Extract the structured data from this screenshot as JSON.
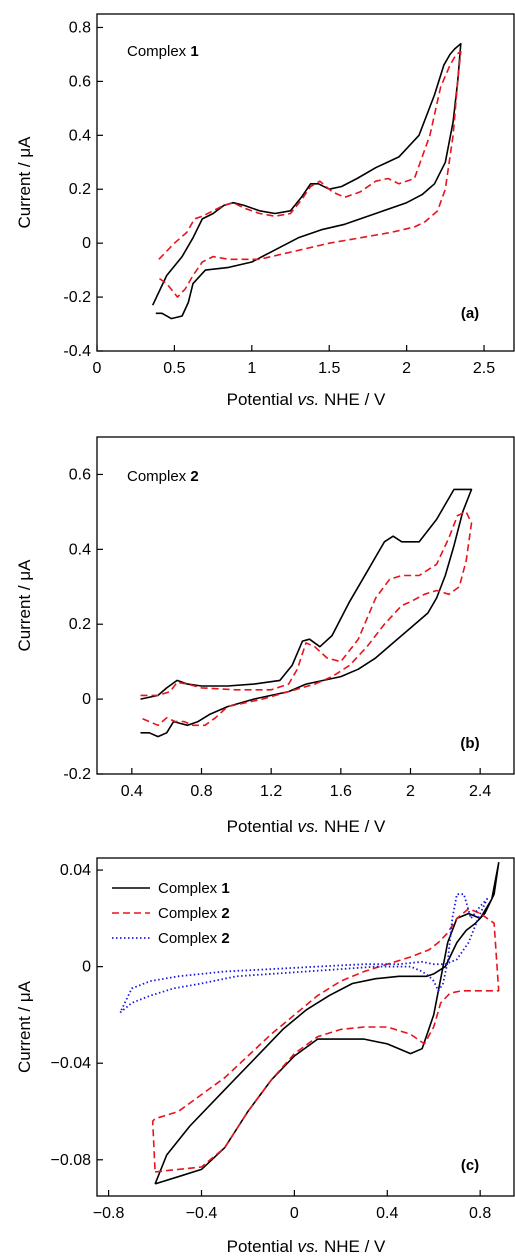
{
  "chart_data": [
    {
      "type": "line",
      "panel_label": "(a)",
      "annotation": {
        "text": "Complex ",
        "bold": "1"
      },
      "xlabel": {
        "pre": "Potential ",
        "ital": "vs.",
        "post": " NHE / V"
      },
      "ylabel": "Current / μA",
      "xlim": [
        0,
        2.7
      ],
      "ylim": [
        -0.4,
        0.85
      ],
      "xticks": [
        0,
        0.5,
        1,
        1.5,
        2,
        2.5
      ],
      "xtick_labels": [
        "0",
        "0.5",
        "1",
        "1.5",
        "2",
        "2.5"
      ],
      "yticks": [
        -0.4,
        -0.2,
        0,
        0.2,
        0.4,
        0.6,
        0.8
      ],
      "ytick_labels": [
        "-0.4",
        "-0.2",
        "0",
        "0.2",
        "0.4",
        "0.6",
        "0.8"
      ],
      "series": [
        {
          "style": "solid",
          "color": "#000000",
          "x": [
            0.36,
            0.45,
            0.55,
            0.62,
            0.68,
            0.75,
            0.82,
            0.88,
            0.95,
            1.05,
            1.15,
            1.25,
            1.32,
            1.38,
            1.43,
            1.5,
            1.58,
            1.68,
            1.8,
            1.95,
            2.08,
            2.18,
            2.24,
            2.28,
            2.31,
            2.35,
            2.33,
            2.3,
            2.25,
            2.18,
            2.1,
            2.0,
            1.8,
            1.6,
            1.45,
            1.3,
            1.1,
            1.0,
            0.85,
            0.7,
            0.62,
            0.59,
            0.55,
            0.48,
            0.42,
            0.38
          ],
          "y": [
            -0.23,
            -0.12,
            -0.05,
            0.02,
            0.09,
            0.11,
            0.14,
            0.15,
            0.14,
            0.12,
            0.11,
            0.12,
            0.17,
            0.22,
            0.22,
            0.2,
            0.21,
            0.24,
            0.28,
            0.32,
            0.4,
            0.55,
            0.66,
            0.7,
            0.72,
            0.74,
            0.6,
            0.45,
            0.3,
            0.22,
            0.18,
            0.15,
            0.11,
            0.07,
            0.05,
            0.02,
            -0.04,
            -0.07,
            -0.09,
            -0.1,
            -0.15,
            -0.22,
            -0.27,
            -0.28,
            -0.26,
            -0.26
          ]
        },
        {
          "style": "dashed",
          "color": "#e8141c",
          "x": [
            0.4,
            0.5,
            0.58,
            0.63,
            0.68,
            0.75,
            0.82,
            0.88,
            0.95,
            1.05,
            1.15,
            1.25,
            1.32,
            1.38,
            1.44,
            1.52,
            1.6,
            1.7,
            1.8,
            1.88,
            1.95,
            2.05,
            2.15,
            2.22,
            2.28,
            2.32,
            2.35,
            2.33,
            2.3,
            2.25,
            2.2,
            2.12,
            2.05,
            1.9,
            1.7,
            1.5,
            1.35,
            1.2,
            1.05,
            0.95,
            0.85,
            0.75,
            0.68,
            0.62,
            0.57,
            0.52,
            0.45,
            0.4
          ],
          "y": [
            -0.06,
            0.0,
            0.04,
            0.09,
            0.1,
            0.12,
            0.14,
            0.15,
            0.13,
            0.11,
            0.1,
            0.11,
            0.16,
            0.21,
            0.23,
            0.19,
            0.17,
            0.19,
            0.23,
            0.24,
            0.22,
            0.24,
            0.4,
            0.58,
            0.66,
            0.7,
            0.71,
            0.6,
            0.4,
            0.2,
            0.12,
            0.08,
            0.06,
            0.04,
            0.02,
            0.0,
            -0.02,
            -0.04,
            -0.06,
            -0.06,
            -0.06,
            -0.05,
            -0.07,
            -0.12,
            -0.17,
            -0.2,
            -0.15,
            -0.13
          ]
        }
      ]
    },
    {
      "type": "line",
      "panel_label": "(b)",
      "annotation": {
        "text": "Complex ",
        "bold": "2"
      },
      "xlabel": {
        "pre": "Potential ",
        "ital": "vs.",
        "post": " NHE / V"
      },
      "ylabel": "Current / μA",
      "xlim": [
        0.2,
        2.6
      ],
      "ylim": [
        -0.2,
        0.7
      ],
      "xticks": [
        0.4,
        0.8,
        1.2,
        1.6,
        2.0,
        2.4
      ],
      "xtick_labels": [
        "0.4",
        "0.8",
        "1.2",
        "1.6",
        "2",
        "2.4"
      ],
      "yticks": [
        -0.2,
        0,
        0.2,
        0.4,
        0.6
      ],
      "ytick_labels": [
        "-0.2",
        "0",
        "0.2",
        "0.4",
        "0.6"
      ],
      "series": [
        {
          "style": "solid",
          "color": "#000000",
          "x": [
            0.45,
            0.55,
            0.6,
            0.66,
            0.72,
            0.8,
            0.95,
            1.1,
            1.25,
            1.32,
            1.38,
            1.42,
            1.48,
            1.55,
            1.65,
            1.75,
            1.85,
            1.9,
            1.95,
            2.05,
            2.15,
            2.2,
            2.25,
            2.3,
            2.35,
            2.3,
            2.25,
            2.2,
            2.15,
            2.1,
            2.0,
            1.9,
            1.8,
            1.7,
            1.6,
            1.5,
            1.4,
            1.3,
            1.1,
            0.95,
            0.85,
            0.78,
            0.72,
            0.68,
            0.64,
            0.6,
            0.55,
            0.5,
            0.45
          ],
          "y": [
            0.0,
            0.01,
            0.03,
            0.05,
            0.04,
            0.035,
            0.035,
            0.04,
            0.05,
            0.09,
            0.155,
            0.16,
            0.14,
            0.17,
            0.26,
            0.34,
            0.42,
            0.435,
            0.42,
            0.42,
            0.48,
            0.52,
            0.56,
            0.56,
            0.56,
            0.5,
            0.41,
            0.33,
            0.27,
            0.23,
            0.19,
            0.15,
            0.11,
            0.08,
            0.06,
            0.05,
            0.04,
            0.02,
            0.0,
            -0.02,
            -0.04,
            -0.06,
            -0.07,
            -0.065,
            -0.06,
            -0.09,
            -0.1,
            -0.09,
            -0.09
          ]
        },
        {
          "style": "dashed",
          "color": "#e8141c",
          "x": [
            0.45,
            0.55,
            0.62,
            0.66,
            0.72,
            0.8,
            1.0,
            1.2,
            1.3,
            1.35,
            1.4,
            1.45,
            1.52,
            1.6,
            1.7,
            1.8,
            1.88,
            1.95,
            2.05,
            2.15,
            2.22,
            2.27,
            2.32,
            2.35,
            2.32,
            2.28,
            2.22,
            2.15,
            2.08,
            2.0,
            1.95,
            1.85,
            1.75,
            1.65,
            1.55,
            1.45,
            1.3,
            1.15,
            0.95,
            0.88,
            0.82,
            0.75,
            0.7,
            0.65,
            0.6,
            0.55,
            0.5,
            0.45
          ],
          "y": [
            0.01,
            0.01,
            0.02,
            0.045,
            0.04,
            0.03,
            0.025,
            0.025,
            0.04,
            0.08,
            0.15,
            0.14,
            0.11,
            0.1,
            0.16,
            0.27,
            0.32,
            0.33,
            0.33,
            0.36,
            0.43,
            0.49,
            0.5,
            0.47,
            0.37,
            0.3,
            0.28,
            0.29,
            0.28,
            0.26,
            0.25,
            0.2,
            0.14,
            0.09,
            0.06,
            0.04,
            0.02,
            0.0,
            -0.02,
            -0.05,
            -0.07,
            -0.07,
            -0.06,
            -0.06,
            -0.05,
            -0.07,
            -0.06,
            -0.05
          ]
        }
      ]
    },
    {
      "type": "line",
      "panel_label": "(c)",
      "xlabel": {
        "pre": "Potential ",
        "ital": "vs.",
        "post": " NHE / V"
      },
      "ylabel": "Current / μA",
      "xlim": [
        -0.85,
        0.95
      ],
      "ylim": [
        -0.095,
        0.045
      ],
      "xticks": [
        -0.8,
        -0.4,
        0,
        0.4,
        0.8
      ],
      "xtick_labels": [
        "−0.8",
        "−0.4",
        "0",
        "0.4",
        "0.8"
      ],
      "yticks": [
        -0.08,
        -0.04,
        0,
        0.04
      ],
      "ytick_labels": [
        "−0.08",
        "−0.04",
        "0",
        "0.04"
      ],
      "legend": [
        {
          "label": "Complex ",
          "bold": "1",
          "style": "solid",
          "color": "#000000"
        },
        {
          "label": "Complex ",
          "bold": "2",
          "style": "dashed",
          "color": "#e8141c"
        },
        {
          "label": "Complex ",
          "bold": "2",
          "style": "dotted",
          "color": "#1a1adc"
        }
      ],
      "series": [
        {
          "style": "solid",
          "color": "#000000",
          "x": [
            -0.6,
            -0.5,
            -0.4,
            -0.3,
            -0.2,
            -0.1,
            0.0,
            0.1,
            0.2,
            0.3,
            0.4,
            0.5,
            0.55,
            0.6,
            0.63,
            0.66,
            0.7,
            0.75,
            0.8,
            0.85,
            0.88,
            0.86,
            0.82,
            0.78,
            0.74,
            0.7,
            0.65,
            0.6,
            0.57,
            0.52,
            0.45,
            0.35,
            0.25,
            0.15,
            0.05,
            -0.05,
            -0.15,
            -0.25,
            -0.35,
            -0.45,
            -0.55,
            -0.6
          ],
          "y": [
            -0.09,
            -0.087,
            -0.084,
            -0.075,
            -0.06,
            -0.047,
            -0.037,
            -0.03,
            -0.03,
            -0.03,
            -0.032,
            -0.036,
            -0.034,
            -0.02,
            -0.005,
            0.01,
            0.02,
            0.022,
            0.02,
            0.028,
            0.043,
            0.03,
            0.022,
            0.018,
            0.015,
            0.01,
            0.0,
            -0.003,
            -0.004,
            -0.004,
            -0.004,
            -0.005,
            -0.007,
            -0.012,
            -0.018,
            -0.026,
            -0.036,
            -0.046,
            -0.056,
            -0.066,
            -0.078,
            -0.09
          ]
        },
        {
          "style": "dashed",
          "color": "#e8141c",
          "x": [
            -0.6,
            -0.5,
            -0.4,
            -0.3,
            -0.2,
            -0.1,
            0.0,
            0.1,
            0.2,
            0.3,
            0.4,
            0.5,
            0.56,
            0.6,
            0.63,
            0.67,
            0.72,
            0.78,
            0.83,
            0.88,
            0.86,
            0.8,
            0.75,
            0.7,
            0.66,
            0.62,
            0.58,
            0.5,
            0.4,
            0.3,
            0.2,
            0.1,
            0.0,
            -0.1,
            -0.2,
            -0.3,
            -0.4,
            -0.5,
            -0.6,
            -0.61,
            -0.6
          ],
          "y": [
            -0.085,
            -0.084,
            -0.083,
            -0.075,
            -0.06,
            -0.047,
            -0.036,
            -0.029,
            -0.026,
            -0.025,
            -0.025,
            -0.028,
            -0.032,
            -0.025,
            -0.015,
            -0.011,
            -0.01,
            -0.01,
            -0.01,
            -0.01,
            0.018,
            0.022,
            0.024,
            0.02,
            0.014,
            0.01,
            0.007,
            0.004,
            0.001,
            -0.002,
            -0.006,
            -0.012,
            -0.02,
            -0.028,
            -0.037,
            -0.046,
            -0.053,
            -0.06,
            -0.063,
            -0.064,
            -0.085
          ]
        },
        {
          "style": "dotted",
          "color": "#1a1adc",
          "x": [
            -0.75,
            -0.7,
            -0.62,
            -0.52,
            -0.4,
            -0.25,
            -0.1,
            0.05,
            0.2,
            0.35,
            0.45,
            0.5,
            0.55,
            0.58,
            0.6,
            0.62,
            0.64,
            0.66,
            0.68,
            0.7,
            0.73,
            0.76,
            0.8,
            0.83,
            0.8,
            0.75,
            0.7,
            0.65,
            0.6,
            0.55,
            0.45,
            0.3,
            0.1,
            -0.1,
            -0.3,
            -0.5,
            -0.62,
            -0.7,
            -0.75
          ],
          "y": [
            -0.019,
            -0.015,
            -0.012,
            -0.009,
            -0.007,
            -0.004,
            -0.003,
            -0.002,
            -0.001,
            0.0,
            0.0,
            0.0,
            -0.002,
            -0.004,
            -0.006,
            -0.01,
            -0.007,
            0.002,
            0.02,
            0.03,
            0.03,
            0.02,
            0.025,
            0.028,
            0.022,
            0.01,
            0.003,
            0.001,
            0.001,
            0.002,
            0.001,
            0.001,
            0.0,
            -0.001,
            -0.002,
            -0.004,
            -0.006,
            -0.009,
            -0.019
          ]
        }
      ]
    }
  ]
}
